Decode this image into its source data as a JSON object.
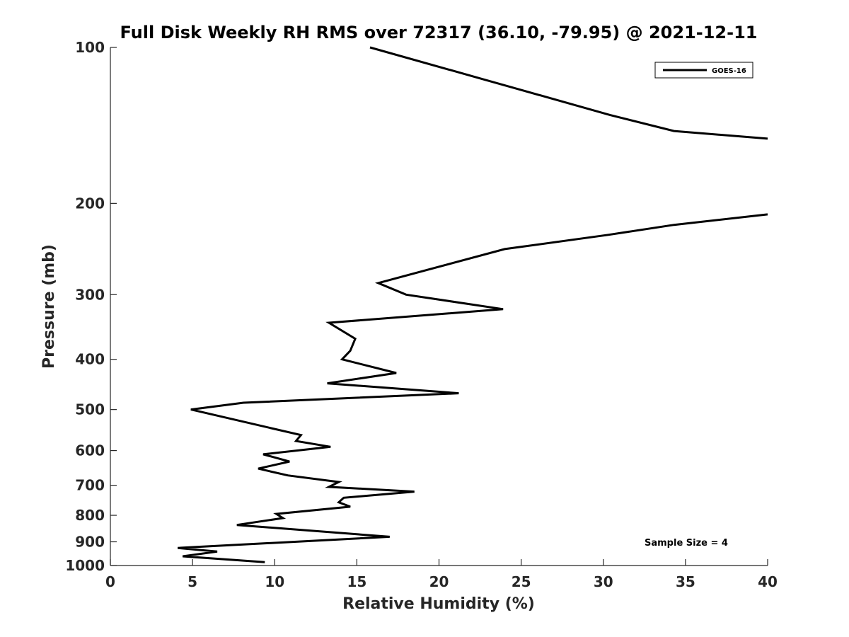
{
  "chart_data": {
    "type": "line",
    "title": "Full Disk Weekly RH RMS over 72317 (36.10, -79.95) @ 2021-12-11",
    "xlabel": "Relative Humidity (%)",
    "ylabel": "Pressure (mb)",
    "xlim": [
      0,
      40
    ],
    "ylim": [
      100,
      1000
    ],
    "yscale": "log",
    "y_reversed": true,
    "x_ticks": [
      0,
      5,
      10,
      15,
      20,
      25,
      30,
      35,
      40
    ],
    "y_ticks": [
      100,
      200,
      300,
      400,
      500,
      600,
      700,
      800,
      900,
      1000
    ],
    "grid": false,
    "legend_position": "top-right",
    "annotation": "Sample Size = 4",
    "series": [
      {
        "name": "GOES-16",
        "color": "#000000",
        "x": [
          15.8,
          22.6,
          30.4,
          34.3,
          40.0
        ],
        "y": [
          100,
          115,
          135,
          145,
          150
        ]
      },
      {
        "name": "GOES-16",
        "color": "#000000",
        "x": [
          40.0,
          34.3,
          30.3,
          24.0,
          16.3,
          18.0,
          23.9,
          13.3,
          14.9,
          14.6,
          14.1,
          17.4,
          13.2,
          21.2,
          8.1,
          4.9,
          11.6,
          11.3,
          13.4,
          9.3,
          10.9,
          9.0,
          10.8,
          13.9,
          13.3,
          18.5,
          14.2,
          13.9,
          14.6,
          10.1,
          10.5,
          7.7,
          17.0,
          4.1,
          6.5,
          4.4,
          9.4
        ],
        "y": [
          210,
          220,
          230,
          245,
          285,
          300,
          320,
          340,
          365,
          385,
          400,
          425,
          445,
          465,
          485,
          500,
          560,
          575,
          590,
          610,
          630,
          650,
          670,
          690,
          705,
          720,
          740,
          755,
          770,
          795,
          810,
          835,
          880,
          925,
          940,
          960,
          985
        ]
      }
    ]
  }
}
